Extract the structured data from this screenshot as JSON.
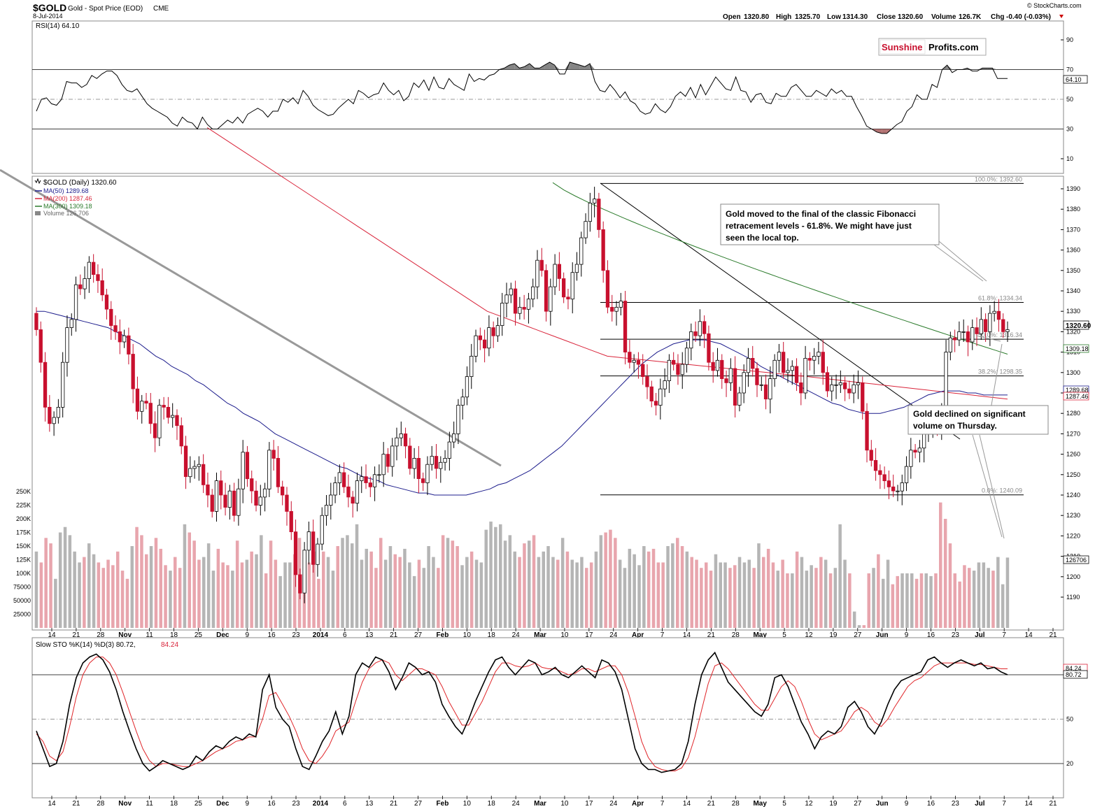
{
  "header": {
    "symbol": "$GOLD",
    "description": "Gold - Spot Price (EOD)",
    "exchange": "CME",
    "date": "8-Jul-2014",
    "credit": "© StockCharts.com",
    "ohlc": {
      "open_label": "Open",
      "open": "1320.80",
      "high_label": "High",
      "high": "1325.70",
      "low_label": "Low",
      "low": "1314.30",
      "close_label": "Close",
      "close": "1320.60",
      "volume_label": "Volume",
      "volume": "126.7K",
      "chg_label": "Chg",
      "chg": "-0.40 (-0.03%)"
    }
  },
  "logo": {
    "part1": "Sunshine",
    "part2": "Profits.com"
  },
  "rsi": {
    "label": "RSI(14) 64.10",
    "last_tag": "64.10",
    "levels": [
      "90",
      "70",
      "50",
      "30",
      "10"
    ],
    "values": [
      42,
      50,
      51,
      47,
      46,
      50,
      62,
      61,
      61,
      58,
      60,
      66,
      64,
      67,
      69,
      69,
      66,
      60,
      56,
      55,
      57,
      52,
      47,
      44,
      42,
      40,
      38,
      34,
      32,
      38,
      35,
      34,
      30,
      38,
      33,
      30,
      30,
      33,
      36,
      34,
      38,
      34,
      40,
      42,
      44,
      42,
      38,
      42,
      42,
      50,
      48,
      51,
      47,
      56,
      52,
      46,
      43,
      41,
      39,
      40,
      44,
      47,
      50,
      47,
      56,
      54,
      51,
      53,
      54,
      61,
      56,
      53,
      56,
      49,
      52,
      61,
      58,
      63,
      56,
      65,
      58,
      57,
      64,
      60,
      58,
      56,
      67,
      62,
      64,
      63,
      66,
      67,
      70,
      71,
      73,
      74,
      71,
      72,
      74,
      71,
      71,
      73,
      75,
      73,
      67,
      67,
      75,
      74,
      73,
      72,
      74,
      62,
      56,
      55,
      60,
      56,
      51,
      55,
      49,
      47,
      42,
      40,
      41,
      47,
      43,
      41,
      45,
      52,
      55,
      52,
      58,
      51,
      60,
      53,
      59,
      65,
      61,
      57,
      56,
      65,
      56,
      55,
      48,
      53,
      54,
      48,
      47,
      54,
      52,
      52,
      58,
      60,
      56,
      52,
      52,
      56,
      54,
      52,
      57,
      54,
      56,
      52,
      52,
      45,
      39,
      32,
      30,
      28,
      27,
      27,
      30,
      33,
      35,
      42,
      45,
      53,
      50,
      50,
      60,
      58,
      70,
      73,
      68,
      70,
      70,
      71,
      69,
      69,
      71,
      71,
      71,
      64,
      64,
      64
    ],
    "overbought": 70,
    "oversold": 30
  },
  "price": {
    "legend": {
      "title": "$GOLD (Daily) 1320.60",
      "ma50": "MA(50) 1289.68",
      "ma200": "MA(200) 1287.46",
      "ma300": "MA(300) 1309.18",
      "volume": "Volume 126,706"
    },
    "y_ticks": [
      "1390",
      "1380",
      "1370",
      "1360",
      "1350",
      "1340",
      "1330",
      "1320",
      "1310",
      "1300",
      "1290",
      "1280",
      "1270",
      "1260",
      "1250",
      "1240",
      "1230",
      "1220",
      "1210",
      "1200",
      "1190"
    ],
    "last_tags": {
      "close": "1320.60",
      "ma300": "1309.18",
      "ma50": "1289.68",
      "ma200": "1287.46",
      "volume": "126706"
    },
    "fib": [
      {
        "label": "100.0%: 1392.60",
        "value": 1392.6
      },
      {
        "label": "61.8%: 1334.34",
        "value": 1334.34
      },
      {
        "label": "50.0%: 1316.34",
        "value": 1316.34
      },
      {
        "label": "38.2%: 1298.35",
        "value": 1298.35
      },
      {
        "label": "0.0%: 1240.09",
        "value": 1240.09
      }
    ],
    "annotations": [
      {
        "text": [
          "Gold moved to the final of the classic Fibonacci",
          "retracement levels - 61.8%. We might have just",
          "seen the local top."
        ]
      },
      {
        "text": [
          "Gold declined on significant",
          "volume on Thursday."
        ]
      }
    ],
    "closes": [
      1321,
      1305,
      1283,
      1275,
      1278,
      1283,
      1305,
      1322,
      1326,
      1343,
      1341,
      1346,
      1354,
      1348,
      1345,
      1338,
      1331,
      1323,
      1320,
      1315,
      1318,
      1309,
      1292,
      1281,
      1286,
      1285,
      1275,
      1268,
      1284,
      1283,
      1278,
      1279,
      1274,
      1264,
      1249,
      1253,
      1254,
      1255,
      1245,
      1240,
      1232,
      1247,
      1240,
      1234,
      1242,
      1230,
      1243,
      1261,
      1248,
      1242,
      1235,
      1239,
      1243,
      1262,
      1258,
      1244,
      1240,
      1232,
      1222,
      1201,
      1192,
      1213,
      1222,
      1206,
      1216,
      1230,
      1235,
      1240,
      1246,
      1251,
      1244,
      1239,
      1236,
      1247,
      1249,
      1246,
      1244,
      1250,
      1250,
      1260,
      1254,
      1264,
      1268,
      1270,
      1264,
      1253,
      1258,
      1248,
      1246,
      1255,
      1259,
      1253,
      1256,
      1258,
      1266,
      1270,
      1284,
      1288,
      1298,
      1308,
      1318,
      1316,
      1312,
      1322,
      1318,
      1323,
      1334,
      1338,
      1341,
      1329,
      1332,
      1331,
      1336,
      1342,
      1355,
      1350,
      1330,
      1342,
      1353,
      1346,
      1337,
      1336,
      1349,
      1353,
      1366,
      1374,
      1383,
      1385,
      1370,
      1350,
      1332,
      1330,
      1332,
      1335,
      1310,
      1305,
      1306,
      1304,
      1298,
      1293,
      1286,
      1284,
      1292,
      1296,
      1306,
      1304,
      1299,
      1304,
      1312,
      1320,
      1318,
      1325,
      1319,
      1305,
      1301,
      1306,
      1297,
      1295,
      1302,
      1284,
      1290,
      1300,
      1307,
      1302,
      1294,
      1294,
      1287,
      1297,
      1306,
      1310,
      1300,
      1301,
      1303,
      1295,
      1290,
      1307,
      1306,
      1308,
      1310,
      1300,
      1291,
      1294,
      1294,
      1295,
      1292,
      1290,
      1294,
      1295,
      1281,
      1262,
      1257,
      1252,
      1250,
      1247,
      1244,
      1242,
      1242,
      1246,
      1254,
      1262,
      1261,
      1263,
      1270,
      1274,
      1276,
      1272,
      1280,
      1310,
      1317,
      1316,
      1320,
      1320,
      1315,
      1322,
      1319,
      1326,
      1320,
      1329,
      1330,
      1326,
      1320,
      1321
    ],
    "ma50": [
      1330,
      1330,
      1329,
      1328,
      1327,
      1326,
      1325,
      1324,
      1323,
      1322,
      1320,
      1318,
      1316,
      1314,
      1311,
      1308,
      1306,
      1303,
      1301,
      1299,
      1296,
      1294,
      1291,
      1288,
      1285,
      1283,
      1280,
      1278,
      1276,
      1273,
      1270,
      1268,
      1266,
      1264,
      1262,
      1260,
      1258,
      1256,
      1254,
      1253,
      1251,
      1249,
      1248,
      1247,
      1245,
      1244,
      1243,
      1242,
      1241,
      1241,
      1240,
      1240,
      1240,
      1240,
      1240,
      1241,
      1242,
      1243,
      1245,
      1246,
      1248,
      1250,
      1252,
      1255,
      1258,
      1261,
      1264,
      1268,
      1272,
      1276,
      1280,
      1284,
      1288,
      1292,
      1296,
      1300,
      1304,
      1307,
      1310,
      1312,
      1314,
      1315,
      1316,
      1316,
      1316,
      1315,
      1314,
      1312,
      1310,
      1308,
      1306,
      1303,
      1301,
      1299,
      1297,
      1295,
      1293,
      1291,
      1289,
      1287,
      1285,
      1284,
      1282,
      1281,
      1280,
      1280,
      1280,
      1281,
      1282,
      1283,
      1285,
      1287,
      1289,
      1290,
      1291,
      1291,
      1291,
      1290,
      1290,
      1289,
      1289,
      1289,
      1289
    ],
    "volumes": [
      140,
      120,
      165,
      155,
      90,
      175,
      185,
      170,
      140,
      120,
      130,
      155,
      135,
      120,
      110,
      125,
      115,
      140,
      105,
      90,
      150,
      185,
      170,
      135,
      150,
      165,
      145,
      115,
      105,
      130,
      110,
      190,
      175,
      160,
      125,
      130,
      155,
      105,
      145,
      120,
      115,
      105,
      160,
      120,
      125,
      140,
      135,
      170,
      100,
      160,
      125,
      95,
      120,
      120,
      135,
      165,
      110,
      120,
      140,
      90,
      140,
      130,
      105,
      150,
      165,
      170,
      155,
      190,
      125,
      145,
      140,
      110,
      165,
      125,
      150,
      135,
      130,
      145,
      120,
      95,
      125,
      110,
      150,
      130,
      110,
      170,
      165,
      160,
      150,
      115,
      130,
      140,
      125,
      120,
      180,
      195,
      185,
      190,
      160,
      170,
      140,
      130,
      155,
      160,
      170,
      130,
      140,
      150,
      130,
      125,
      165,
      140,
      125,
      120,
      130,
      110,
      120,
      140,
      170,
      175,
      180,
      165,
      125,
      110,
      145,
      135,
      115,
      150,
      140,
      145,
      120,
      120,
      150,
      155,
      165,
      150,
      140,
      130,
      125,
      110,
      120,
      105,
      135,
      120,
      120,
      110,
      115,
      130,
      120,
      125,
      110,
      155,
      130,
      145,
      120,
      105,
      125,
      100,
      100,
      140,
      130,
      105,
      115,
      110,
      130,
      125,
      100,
      110,
      190,
      125,
      100,
      30,
      5,
      5,
      100,
      110,
      135,
      90,
      125,
      80,
      95,
      100,
      100,
      100,
      90,
      100,
      100,
      95,
      100,
      230,
      200,
      155,
      100,
      85,
      115,
      110,
      105,
      120,
      120,
      110,
      105,
      130,
      80,
      129
    ]
  },
  "x_axis": {
    "labels": [
      "14",
      "21",
      "28",
      "Nov",
      "11",
      "18",
      "25",
      "Dec",
      "9",
      "16",
      "23",
      "2014",
      "6",
      "13",
      "21",
      "27",
      "Feb",
      "10",
      "18",
      "24",
      "Mar",
      "10",
      "17",
      "24",
      "Apr",
      "7",
      "14",
      "21",
      "28",
      "May",
      "5",
      "12",
      "19",
      "27",
      "Jun",
      "9",
      "16",
      "23",
      "Jul",
      "7",
      "14",
      "21"
    ]
  },
  "volume_axis": [
    "250K",
    "225K",
    "200K",
    "175K",
    "150K",
    "125K",
    "100K",
    "75000",
    "50000",
    "25000"
  ],
  "sto": {
    "label_main": "Slow STO %K(14) %D(3) 80.72,",
    "label_d": "84.24",
    "tag_d": "84.24",
    "tag_k": "80.72",
    "levels": [
      "50",
      "20"
    ],
    "k": [
      42,
      30,
      18,
      20,
      35,
      60,
      78,
      88,
      92,
      94,
      90,
      82,
      70,
      55,
      42,
      30,
      20,
      15,
      18,
      22,
      20,
      18,
      16,
      18,
      25,
      22,
      28,
      32,
      30,
      35,
      38,
      36,
      40,
      38,
      70,
      80,
      58,
      50,
      45,
      30,
      18,
      16,
      25,
      35,
      42,
      55,
      40,
      52,
      80,
      88,
      85,
      92,
      90,
      82,
      70,
      78,
      88,
      85,
      80,
      82,
      75,
      60,
      52,
      45,
      40,
      50,
      62,
      72,
      82,
      90,
      92,
      85,
      80,
      85,
      90,
      88,
      80,
      82,
      85,
      80,
      78,
      82,
      86,
      82,
      78,
      90,
      88,
      82,
      70,
      50,
      30,
      20,
      16,
      16,
      14,
      15,
      16,
      20,
      35,
      60,
      80,
      90,
      95,
      85,
      75,
      70,
      65,
      60,
      55,
      52,
      60,
      78,
      80,
      72,
      60,
      48,
      40,
      30,
      38,
      42,
      40,
      45,
      58,
      62,
      55,
      45,
      40,
      48,
      60,
      70,
      76,
      78,
      80,
      82,
      90,
      92,
      88,
      85,
      88,
      90,
      88,
      86,
      88,
      84,
      85,
      82,
      80
    ],
    "d": [
      40,
      35,
      25,
      22,
      28,
      45,
      65,
      80,
      88,
      92,
      92,
      88,
      80,
      68,
      55,
      42,
      30,
      22,
      18,
      20,
      20,
      19,
      18,
      18,
      20,
      22,
      25,
      28,
      30,
      32,
      35,
      36,
      38,
      38,
      50,
      66,
      68,
      60,
      52,
      42,
      30,
      22,
      20,
      25,
      32,
      42,
      45,
      48,
      62,
      75,
      84,
      88,
      90,
      88,
      80,
      76,
      80,
      84,
      84,
      82,
      80,
      72,
      62,
      54,
      46,
      46,
      54,
      62,
      72,
      82,
      88,
      88,
      86,
      85,
      86,
      88,
      85,
      84,
      84,
      82,
      80,
      81,
      84,
      84,
      82,
      84,
      86,
      86,
      80,
      68,
      52,
      35,
      24,
      18,
      16,
      15,
      15,
      17,
      24,
      38,
      56,
      74,
      86,
      88,
      84,
      78,
      72,
      66,
      60,
      56,
      56,
      64,
      72,
      76,
      72,
      62,
      50,
      40,
      36,
      38,
      40,
      42,
      48,
      55,
      58,
      55,
      48,
      45,
      50,
      58,
      65,
      72,
      76,
      78,
      82,
      86,
      88,
      88,
      88,
      88,
      88,
      87,
      87,
      86,
      85,
      84,
      84
    ]
  }
}
